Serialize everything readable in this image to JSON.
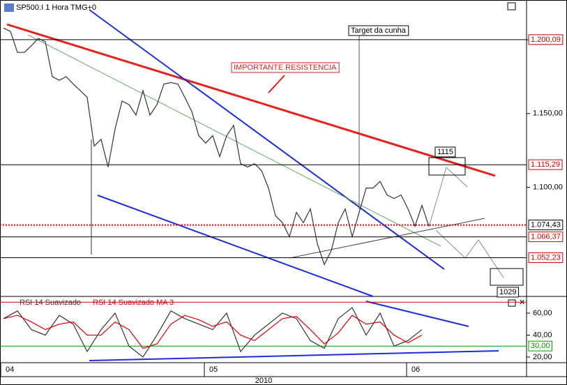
{
  "chart_data": [
    {
      "type": "line",
      "title": "SP500.I 1 Hora TMG+0",
      "series": [
        {
          "name": "SP500.I",
          "color": "#333333",
          "values": [
            1208,
            1205.7,
            1191.5,
            1191.5,
            1196,
            1201,
            1198.6,
            1175,
            1172.6,
            1175,
            1170,
            1165.6,
            1161,
            1128,
            1132.5,
            1113.7,
            1139.6,
            1158.5,
            1156,
            1149,
            1165.6,
            1149,
            1156,
            1170,
            1171,
            1170,
            1161,
            1151.4,
            1135,
            1130,
            1135,
            1120.8,
            1135,
            1142,
            1116,
            1113.7,
            1116,
            1111.3,
            1099.5,
            1080.7,
            1076,
            1066.5,
            1083,
            1076,
            1085.4,
            1061.8,
            1047.6,
            1057,
            1076,
            1085.4,
            1066.5,
            1083,
            1099.5,
            1099.5,
            1104,
            1094.8,
            1092.4,
            1094.8,
            1085.4,
            1073.6,
            1087.7,
            1073.6
          ]
        }
      ],
      "ylim": [
        1026,
        1227
      ],
      "yticks": [
        {
          "value": 1200,
          "label": "1.200,00"
        },
        {
          "value": 1150,
          "label": "1.150,00"
        },
        {
          "value": 1100,
          "label": "1.100,00"
        }
      ],
      "levels": [
        {
          "value": 1200.09,
          "label": "1.200,09",
          "color": "#cc0000"
        },
        {
          "value": 1115.29,
          "label": "1.115,29",
          "color": "#cc0000"
        },
        {
          "value": 1074.43,
          "label": "1.074,43",
          "color": "#000000",
          "dotted": true
        },
        {
          "value": 1066.37,
          "label": "1.066,37",
          "color": "#cc0000"
        },
        {
          "value": 1052.23,
          "label": "1.052,23",
          "color": "#cc0000"
        }
      ],
      "annotations": [
        "Target da cunha",
        "IMPORTANTE RESISTENCIA",
        "1115",
        "1029"
      ],
      "x_labels": [
        "04",
        "05",
        "06"
      ],
      "year": "2010"
    },
    {
      "type": "line",
      "title": "RSI 14 Suavizado",
      "series": [
        {
          "name": "RSI 14 Suavizado",
          "color": "#333333",
          "values": [
            55,
            62,
            45,
            40,
            58,
            50,
            25,
            45,
            60,
            30,
            20,
            40,
            62,
            55,
            50,
            45,
            60,
            25,
            40,
            50,
            60,
            55,
            35,
            28,
            55,
            65,
            40,
            60,
            30,
            35,
            45
          ]
        },
        {
          "name": "RSI 14 Suavizado MA 3",
          "color": "#e00000",
          "values": [
            55,
            58,
            52,
            45,
            50,
            52,
            40,
            40,
            52,
            45,
            28,
            32,
            50,
            58,
            54,
            48,
            52,
            40,
            35,
            45,
            55,
            57,
            45,
            32,
            42,
            58,
            50,
            52,
            40,
            33,
            40
          ]
        }
      ],
      "ylim": [
        14.9,
        73.3
      ],
      "yticks": [
        {
          "value": 60,
          "label": "60,00"
        },
        {
          "value": 40,
          "label": "40,00"
        },
        {
          "value": 20,
          "label": "20,00"
        }
      ],
      "levels": [
        {
          "value": 70,
          "color": "#cc0000"
        },
        {
          "value": 30,
          "label": "30,00",
          "color": "#009900"
        }
      ]
    }
  ]
}
